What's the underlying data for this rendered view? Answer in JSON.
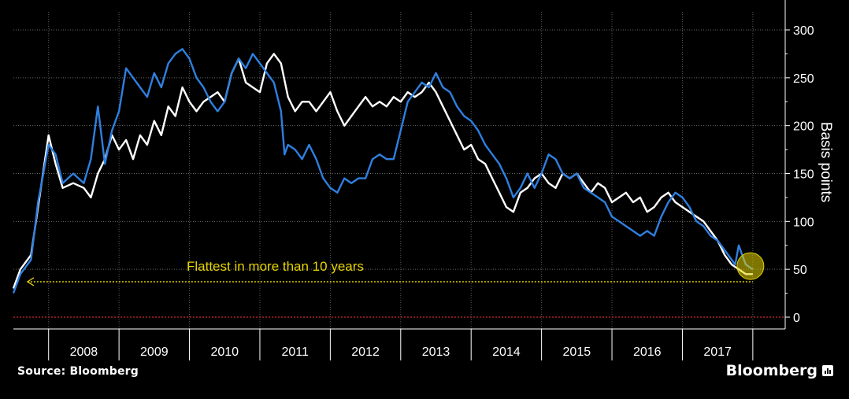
{
  "chart_data": {
    "type": "line",
    "title": "",
    "xlabel": "",
    "ylabel": "Basis points",
    "ylim": [
      0,
      320
    ],
    "y_ticks": [
      0,
      50,
      100,
      150,
      200,
      250,
      300
    ],
    "x_tick_labels": [
      "2008",
      "2009",
      "2010",
      "2011",
      "2012",
      "2013",
      "2014",
      "2015",
      "2016",
      "2017"
    ],
    "grid": true,
    "zero_line_color": "#d0282e",
    "series": [
      {
        "color": "#ffffff",
        "points": [
          [
            2007.5,
            30
          ],
          [
            2007.6,
            50
          ],
          [
            2007.75,
            65
          ],
          [
            2007.9,
            140
          ],
          [
            2008.0,
            190
          ],
          [
            2008.1,
            160
          ],
          [
            2008.2,
            135
          ],
          [
            2008.35,
            140
          ],
          [
            2008.5,
            135
          ],
          [
            2008.6,
            125
          ],
          [
            2008.7,
            150
          ],
          [
            2008.8,
            165
          ],
          [
            2008.9,
            190
          ],
          [
            2009.0,
            175
          ],
          [
            2009.1,
            185
          ],
          [
            2009.2,
            165
          ],
          [
            2009.3,
            190
          ],
          [
            2009.4,
            180
          ],
          [
            2009.5,
            205
          ],
          [
            2009.6,
            190
          ],
          [
            2009.7,
            220
          ],
          [
            2009.8,
            210
          ],
          [
            2009.9,
            240
          ],
          [
            2010.0,
            225
          ],
          [
            2010.1,
            215
          ],
          [
            2010.2,
            225
          ],
          [
            2010.3,
            230
          ],
          [
            2010.4,
            235
          ],
          [
            2010.5,
            225
          ],
          [
            2010.6,
            255
          ],
          [
            2010.7,
            270
          ],
          [
            2010.8,
            245
          ],
          [
            2010.9,
            240
          ],
          [
            2011.0,
            235
          ],
          [
            2011.1,
            265
          ],
          [
            2011.2,
            275
          ],
          [
            2011.3,
            265
          ],
          [
            2011.4,
            230
          ],
          [
            2011.5,
            215
          ],
          [
            2011.6,
            225
          ],
          [
            2011.7,
            225
          ],
          [
            2011.8,
            215
          ],
          [
            2011.9,
            225
          ],
          [
            2012.0,
            235
          ],
          [
            2012.1,
            215
          ],
          [
            2012.2,
            200
          ],
          [
            2012.3,
            210
          ],
          [
            2012.4,
            220
          ],
          [
            2012.5,
            230
          ],
          [
            2012.6,
            220
          ],
          [
            2012.7,
            225
          ],
          [
            2012.8,
            220
          ],
          [
            2012.9,
            230
          ],
          [
            2013.0,
            225
          ],
          [
            2013.1,
            235
          ],
          [
            2013.2,
            230
          ],
          [
            2013.3,
            235
          ],
          [
            2013.4,
            245
          ],
          [
            2013.5,
            235
          ],
          [
            2013.6,
            220
          ],
          [
            2013.7,
            205
          ],
          [
            2013.8,
            190
          ],
          [
            2013.9,
            175
          ],
          [
            2014.0,
            180
          ],
          [
            2014.1,
            165
          ],
          [
            2014.2,
            160
          ],
          [
            2014.3,
            145
          ],
          [
            2014.4,
            130
          ],
          [
            2014.5,
            115
          ],
          [
            2014.6,
            110
          ],
          [
            2014.7,
            130
          ],
          [
            2014.8,
            135
          ],
          [
            2014.9,
            145
          ],
          [
            2015.0,
            150
          ],
          [
            2015.1,
            140
          ],
          [
            2015.2,
            135
          ],
          [
            2015.3,
            150
          ],
          [
            2015.4,
            145
          ],
          [
            2015.5,
            150
          ],
          [
            2015.6,
            140
          ],
          [
            2015.7,
            130
          ],
          [
            2015.8,
            140
          ],
          [
            2015.9,
            135
          ],
          [
            2016.0,
            120
          ],
          [
            2016.1,
            125
          ],
          [
            2016.2,
            130
          ],
          [
            2016.3,
            120
          ],
          [
            2016.4,
            125
          ],
          [
            2016.5,
            110
          ],
          [
            2016.6,
            115
          ],
          [
            2016.7,
            125
          ],
          [
            2016.8,
            130
          ],
          [
            2016.9,
            120
          ],
          [
            2017.0,
            115
          ],
          [
            2017.1,
            110
          ],
          [
            2017.2,
            105
          ],
          [
            2017.3,
            100
          ],
          [
            2017.4,
            90
          ],
          [
            2017.5,
            80
          ],
          [
            2017.6,
            65
          ],
          [
            2017.7,
            55
          ],
          [
            2017.8,
            50
          ],
          [
            2017.9,
            45
          ],
          [
            2018.0,
            45
          ]
        ]
      },
      {
        "color": "#2f7fe0",
        "points": [
          [
            2007.5,
            25
          ],
          [
            2007.6,
            45
          ],
          [
            2007.75,
            60
          ],
          [
            2007.85,
            120
          ],
          [
            2008.0,
            180
          ],
          [
            2008.1,
            170
          ],
          [
            2008.2,
            140
          ],
          [
            2008.35,
            150
          ],
          [
            2008.5,
            140
          ],
          [
            2008.6,
            165
          ],
          [
            2008.7,
            220
          ],
          [
            2008.8,
            160
          ],
          [
            2008.9,
            195
          ],
          [
            2009.0,
            215
          ],
          [
            2009.1,
            260
          ],
          [
            2009.2,
            250
          ],
          [
            2009.3,
            240
          ],
          [
            2009.4,
            230
          ],
          [
            2009.5,
            255
          ],
          [
            2009.6,
            240
          ],
          [
            2009.7,
            265
          ],
          [
            2009.8,
            275
          ],
          [
            2009.9,
            280
          ],
          [
            2010.0,
            270
          ],
          [
            2010.1,
            250
          ],
          [
            2010.2,
            240
          ],
          [
            2010.3,
            225
          ],
          [
            2010.4,
            215
          ],
          [
            2010.5,
            225
          ],
          [
            2010.6,
            255
          ],
          [
            2010.7,
            270
          ],
          [
            2010.8,
            260
          ],
          [
            2010.9,
            275
          ],
          [
            2011.0,
            265
          ],
          [
            2011.1,
            255
          ],
          [
            2011.2,
            245
          ],
          [
            2011.3,
            215
          ],
          [
            2011.35,
            170
          ],
          [
            2011.4,
            180
          ],
          [
            2011.5,
            175
          ],
          [
            2011.6,
            165
          ],
          [
            2011.7,
            180
          ],
          [
            2011.8,
            165
          ],
          [
            2011.9,
            145
          ],
          [
            2012.0,
            135
          ],
          [
            2012.1,
            130
          ],
          [
            2012.2,
            145
          ],
          [
            2012.3,
            140
          ],
          [
            2012.4,
            145
          ],
          [
            2012.5,
            145
          ],
          [
            2012.6,
            165
          ],
          [
            2012.7,
            170
          ],
          [
            2012.8,
            165
          ],
          [
            2012.9,
            165
          ],
          [
            2013.0,
            195
          ],
          [
            2013.1,
            225
          ],
          [
            2013.2,
            235
          ],
          [
            2013.3,
            245
          ],
          [
            2013.4,
            240
          ],
          [
            2013.5,
            255
          ],
          [
            2013.6,
            240
          ],
          [
            2013.7,
            235
          ],
          [
            2013.8,
            220
          ],
          [
            2013.9,
            210
          ],
          [
            2014.0,
            205
          ],
          [
            2014.1,
            195
          ],
          [
            2014.2,
            180
          ],
          [
            2014.3,
            170
          ],
          [
            2014.4,
            160
          ],
          [
            2014.5,
            145
          ],
          [
            2014.6,
            125
          ],
          [
            2014.7,
            135
          ],
          [
            2014.8,
            150
          ],
          [
            2014.9,
            135
          ],
          [
            2015.0,
            150
          ],
          [
            2015.1,
            170
          ],
          [
            2015.2,
            165
          ],
          [
            2015.3,
            150
          ],
          [
            2015.4,
            145
          ],
          [
            2015.5,
            150
          ],
          [
            2015.6,
            135
          ],
          [
            2015.7,
            130
          ],
          [
            2015.8,
            125
          ],
          [
            2015.9,
            120
          ],
          [
            2016.0,
            105
          ],
          [
            2016.1,
            100
          ],
          [
            2016.2,
            95
          ],
          [
            2016.3,
            90
          ],
          [
            2016.4,
            85
          ],
          [
            2016.5,
            90
          ],
          [
            2016.6,
            85
          ],
          [
            2016.7,
            105
          ],
          [
            2016.8,
            120
          ],
          [
            2016.9,
            130
          ],
          [
            2017.0,
            125
          ],
          [
            2017.1,
            115
          ],
          [
            2017.2,
            100
          ],
          [
            2017.3,
            95
          ],
          [
            2017.4,
            85
          ],
          [
            2017.5,
            80
          ],
          [
            2017.6,
            70
          ],
          [
            2017.7,
            60
          ],
          [
            2017.75,
            55
          ],
          [
            2017.8,
            75
          ],
          [
            2017.9,
            55
          ],
          [
            2018.0,
            50
          ]
        ]
      }
    ],
    "annotation": {
      "text": "Flattest in more than 10 years",
      "color": "#e6d400",
      "level": 37,
      "x_from": 2007.7,
      "x_to": 2018.0
    },
    "highlight": {
      "x": 2018.0,
      "y": 50,
      "color": "#e6d400"
    }
  },
  "footer": {
    "source": "Source: Bloomberg",
    "brand": "Bloomberg"
  }
}
